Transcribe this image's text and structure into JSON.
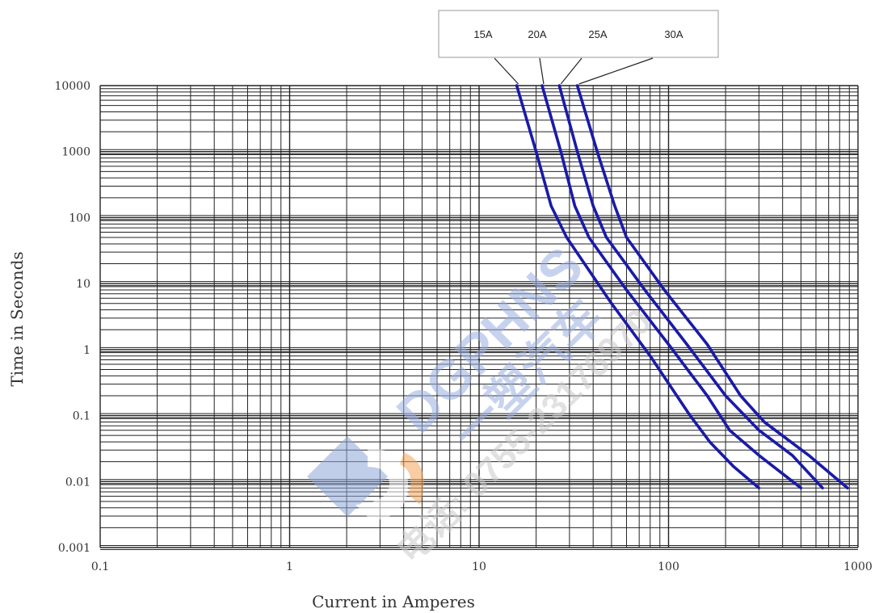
{
  "chart_data": {
    "type": "line",
    "xlabel": "Current in Amperes",
    "ylabel": "Time in Seconds",
    "x_scale": "log",
    "y_scale": "log",
    "xlim": [
      0.1,
      1000
    ],
    "ylim": [
      0.001,
      10000
    ],
    "x_ticks": [
      "0.1",
      "1",
      "10",
      "100",
      "1000"
    ],
    "y_ticks": [
      "0.001",
      "0.01",
      "0.1",
      "1",
      "10",
      "100",
      "1000",
      "10000"
    ],
    "grid": true,
    "legend_position": "top-center",
    "series_color": "#1a1aa8",
    "series": [
      {
        "name": "15A",
        "points": [
          [
            15.8,
            10000
          ],
          [
            20,
            1000
          ],
          [
            24,
            150
          ],
          [
            29,
            50
          ],
          [
            50,
            5
          ],
          [
            80,
            0.8
          ],
          [
            130,
            0.1
          ],
          [
            165,
            0.04
          ],
          [
            220,
            0.017
          ],
          [
            300,
            0.008
          ]
        ]
      },
      {
        "name": "20A",
        "points": [
          [
            21.5,
            10000
          ],
          [
            27,
            1000
          ],
          [
            32,
            150
          ],
          [
            38,
            50
          ],
          [
            60,
            8
          ],
          [
            100,
            1.2
          ],
          [
            160,
            0.2
          ],
          [
            210,
            0.06
          ],
          [
            300,
            0.025
          ],
          [
            500,
            0.008
          ]
        ]
      },
      {
        "name": "25A",
        "points": [
          [
            26.5,
            10000
          ],
          [
            33,
            1000
          ],
          [
            40,
            150
          ],
          [
            47,
            50
          ],
          [
            75,
            8
          ],
          [
            125,
            1.2
          ],
          [
            200,
            0.2
          ],
          [
            300,
            0.06
          ],
          [
            450,
            0.025
          ],
          [
            650,
            0.008
          ]
        ]
      },
      {
        "name": "30A",
        "points": [
          [
            33,
            10000
          ],
          [
            42,
            1000
          ],
          [
            52,
            150
          ],
          [
            60,
            50
          ],
          [
            95,
            8
          ],
          [
            160,
            1.2
          ],
          [
            240,
            0.2
          ],
          [
            320,
            0.08
          ],
          [
            550,
            0.025
          ],
          [
            880,
            0.008
          ]
        ]
      }
    ]
  },
  "watermark": {
    "brand": "DGPHNS",
    "cn": "一塑汽车",
    "phone": "电话: 0755-23176970"
  }
}
